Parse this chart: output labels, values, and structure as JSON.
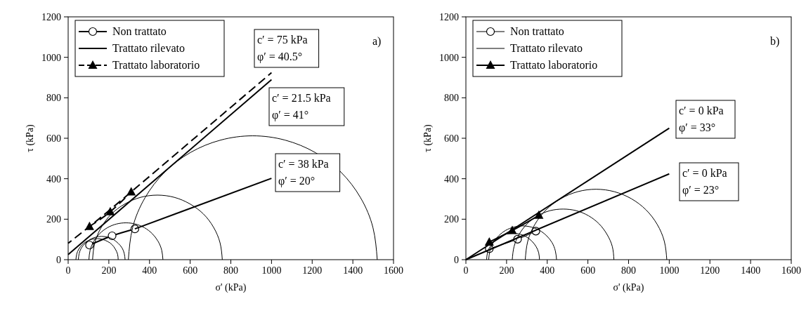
{
  "chart_data": [
    {
      "type": "line",
      "xlabel": "σ' (kPa)",
      "ylabel": "τ (kPa)",
      "xlim": [
        0,
        1600
      ],
      "ylim": [
        0,
        1200
      ],
      "xticks": [
        0,
        200,
        400,
        600,
        800,
        1000,
        1200,
        1400,
        1600
      ],
      "yticks": [
        0,
        200,
        400,
        600,
        800,
        1000,
        1200
      ],
      "grid": false,
      "legend": "top left",
      "series": [
        {
          "name": "Non trattato",
          "color": "#000000",
          "line_style": "solid",
          "marker": "circle",
          "x": [
            105,
            216,
            328
          ],
          "values": [
            72,
            118,
            152
          ]
        },
        {
          "name": "Trattato rilevato",
          "color": "#000000",
          "line_style": "solid",
          "x": [
            0,
            1000
          ],
          "values": [
            25,
            890
          ]
        },
        {
          "name": "Trattato laboratorio",
          "color": "#000000",
          "line_style": "dashed",
          "marker": "triangle",
          "x": [
            105,
            207,
            310
          ],
          "values": [
            164,
            237,
            335
          ]
        },
        {
          "color": "#000000",
          "line_style": "solid",
          "x": [
            328,
            1000
          ],
          "values": [
            152,
            402
          ]
        },
        {
          "color": "#000000",
          "line_style": "dashed",
          "x": [
            0,
            105,
            310,
            1000
          ],
          "values": [
            81,
            164,
            335,
            924
          ]
        },
        {
          "color": "#000000",
          "x": [
            38,
            42,
            52,
            69,
            90,
            115,
            142,
            169,
            194,
            216,
            232,
            243,
            246
          ],
          "values": [
            0,
            27,
            52,
            74,
            90,
            100,
            104,
            100,
            90,
            74,
            52,
            27,
            0
          ]
        },
        {
          "color": "#000000",
          "x": [
            50,
            54,
            65,
            84,
            108,
            135,
            165,
            195,
            222,
            246,
            265,
            276,
            280
          ],
          "values": [
            0,
            30,
            58,
            81,
            100,
            111,
            115,
            111,
            100,
            81,
            58,
            30,
            0
          ]
        },
        {
          "color": "#000000",
          "x": [
            102,
            108,
            126,
            155,
            193,
            237,
            284,
            331,
            375,
            413,
            442,
            460,
            466
          ],
          "values": [
            0,
            47,
            91,
            129,
            158,
            176,
            182,
            176,
            158,
            129,
            91,
            47,
            0
          ]
        },
        {
          "color": "#000000",
          "x": [
            120,
            131,
            163,
            213,
            280,
            356,
            439,
            522,
            598,
            665,
            715,
            747,
            758
          ],
          "values": [
            0,
            83,
            160,
            226,
            276,
            308,
            319,
            308,
            276,
            226,
            160,
            83,
            0
          ]
        },
        {
          "color": "#000000",
          "x": [
            296,
            317,
            378,
            475,
            602,
            750,
            908,
            1066,
            1214,
            1341,
            1438,
            1499,
            1520
          ],
          "values": [
            0,
            158,
            306,
            433,
            530,
            591,
            612,
            591,
            530,
            433,
            306,
            158,
            0
          ]
        }
      ],
      "annotations": [
        "c′ = 75 kPa\nφ′ = 40.5°",
        "c′ = 21.5 kPa\nφ′ = 41°",
        "c′ = 38 kPa\nφ′ = 20°",
        "a)"
      ]
    },
    {
      "type": "line",
      "xlabel": "σ' (kPa)",
      "ylabel": "τ (kPa)",
      "xlim": [
        0,
        1600
      ],
      "ylim": [
        0,
        1200
      ],
      "xticks": [
        0,
        200,
        400,
        600,
        800,
        1000,
        1200,
        1400,
        1600
      ],
      "yticks": [
        0,
        200,
        400,
        600,
        800,
        1000,
        1200
      ],
      "grid": false,
      "legend": "top left",
      "series": [
        {
          "name": "Non trattato",
          "color": "#000000",
          "marker": "circle",
          "x": [
            115,
            254,
            344
          ],
          "values": [
            54,
            101,
            141
          ]
        },
        {
          "name": "Trattato rilevato",
          "color": "#000000"
        },
        {
          "name": "Trattato laboratorio",
          "color": "#000000",
          "line_style": "solid",
          "marker": "triangle",
          "x": [
            115,
            228,
            359
          ],
          "values": [
            87,
            144,
            219
          ]
        },
        {
          "color": "#000000",
          "line_style": "solid",
          "x": [
            0,
            1000
          ],
          "values": [
            0,
            424
          ]
        },
        {
          "color": "#000000",
          "line_style": "solid",
          "x": [
            0,
            1000
          ],
          "values": [
            0,
            650
          ]
        },
        {
          "color": "#000000",
          "x": [
            102,
            106,
            119,
            140,
            167,
            198,
            232,
            266,
            297,
            324,
            345,
            358,
            362
          ],
          "values": [
            0,
            34,
            65,
            92,
            113,
            126,
            130,
            126,
            113,
            92,
            65,
            34,
            0
          ]
        },
        {
          "color": "#000000",
          "x": [
            112,
            118,
            134,
            161,
            196,
            236,
            279,
            322,
            362,
            397,
            424,
            440,
            446
          ],
          "values": [
            0,
            43,
            84,
            118,
            145,
            161,
            167,
            161,
            145,
            118,
            84,
            43,
            0
          ]
        },
        {
          "color": "#000000",
          "x": [
            228,
            237,
            262,
            301,
            353,
            413,
            478,
            543,
            603,
            655,
            694,
            720,
            728
          ],
          "values": [
            0,
            65,
            125,
            177,
            217,
            242,
            250,
            242,
            217,
            177,
            125,
            65,
            0
          ]
        },
        {
          "color": "#000000",
          "x": [
            292,
            304,
            339,
            394,
            466,
            550,
            640,
            730,
            814,
            886,
            941,
            976,
            988
          ],
          "values": [
            0,
            90,
            174,
            246,
            301,
            336,
            348,
            336,
            301,
            246,
            174,
            90,
            0
          ]
        }
      ],
      "annotations": [
        "c′ = 0 kPa\nφ′ = 33°",
        "c′ = 0 kPa\nφ′ = 23°",
        "b)"
      ]
    }
  ]
}
